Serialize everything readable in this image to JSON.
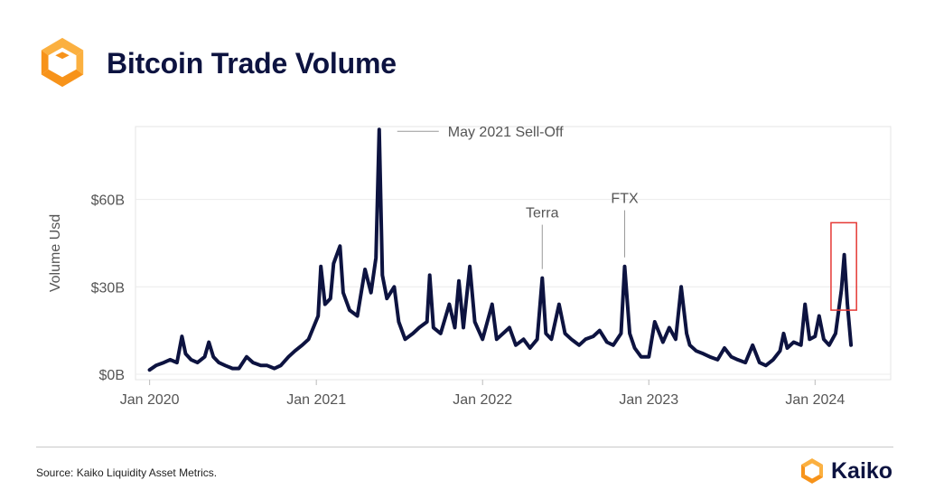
{
  "header": {
    "title": "Bitcoin Trade Volume",
    "logo_icon": "kaiko-logo-icon"
  },
  "footer": {
    "source": "Source: Kaiko Liquidity Asset Metrics.",
    "brand": "Kaiko"
  },
  "colors": {
    "title": "#0d1340",
    "line": "#0d1340",
    "logo_orange": "#f7931a",
    "logo_amber": "#fbb040",
    "highlight_box": "#e53935",
    "axis_text": "#555555",
    "annotation_text": "#555555"
  },
  "chart_data": {
    "type": "line",
    "title": "Bitcoin Trade Volume",
    "xlabel": "",
    "ylabel": "Volume Usd",
    "x_range": [
      "2019-12-01",
      "2024-06-15"
    ],
    "ylim": [
      0,
      85
    ],
    "y_unit": "USD billions",
    "y_ticks": [
      {
        "value": 0,
        "label": "$0B"
      },
      {
        "value": 30,
        "label": "$30B"
      },
      {
        "value": 60,
        "label": "$60B"
      }
    ],
    "x_ticks": [
      {
        "date": "2020-01-01",
        "label": "Jan 2020"
      },
      {
        "date": "2021-01-01",
        "label": "Jan 2021"
      },
      {
        "date": "2022-01-01",
        "label": "Jan 2022"
      },
      {
        "date": "2023-01-01",
        "label": "Jan 2023"
      },
      {
        "date": "2024-01-01",
        "label": "Jan 2024"
      }
    ],
    "grid": true,
    "series": [
      {
        "values": [
          [
            "2020-01-01",
            1.5
          ],
          [
            "2020-01-15",
            3
          ],
          [
            "2020-02-01",
            4
          ],
          [
            "2020-02-15",
            5
          ],
          [
            "2020-03-01",
            4
          ],
          [
            "2020-03-12",
            13
          ],
          [
            "2020-03-20",
            7
          ],
          [
            "2020-04-01",
            5
          ],
          [
            "2020-04-15",
            4
          ],
          [
            "2020-05-01",
            6
          ],
          [
            "2020-05-10",
            11
          ],
          [
            "2020-05-20",
            6
          ],
          [
            "2020-06-01",
            4
          ],
          [
            "2020-06-15",
            3
          ],
          [
            "2020-07-01",
            2
          ],
          [
            "2020-07-15",
            2
          ],
          [
            "2020-08-01",
            6
          ],
          [
            "2020-08-15",
            4
          ],
          [
            "2020-09-01",
            3
          ],
          [
            "2020-09-15",
            3
          ],
          [
            "2020-10-01",
            2
          ],
          [
            "2020-10-15",
            3
          ],
          [
            "2020-11-01",
            6
          ],
          [
            "2020-11-15",
            8
          ],
          [
            "2020-12-01",
            10
          ],
          [
            "2020-12-15",
            12
          ],
          [
            "2021-01-05",
            20
          ],
          [
            "2021-01-11",
            37
          ],
          [
            "2021-01-20",
            24
          ],
          [
            "2021-02-01",
            26
          ],
          [
            "2021-02-08",
            38
          ],
          [
            "2021-02-22",
            44
          ],
          [
            "2021-03-01",
            28
          ],
          [
            "2021-03-15",
            22
          ],
          [
            "2021-04-01",
            20
          ],
          [
            "2021-04-18",
            36
          ],
          [
            "2021-05-01",
            28
          ],
          [
            "2021-05-12",
            40
          ],
          [
            "2021-05-19",
            84
          ],
          [
            "2021-05-26",
            34
          ],
          [
            "2021-06-05",
            26
          ],
          [
            "2021-06-21",
            30
          ],
          [
            "2021-07-01",
            18
          ],
          [
            "2021-07-15",
            12
          ],
          [
            "2021-08-01",
            14
          ],
          [
            "2021-08-15",
            16
          ],
          [
            "2021-09-01",
            18
          ],
          [
            "2021-09-07",
            34
          ],
          [
            "2021-09-15",
            16
          ],
          [
            "2021-10-01",
            14
          ],
          [
            "2021-10-20",
            24
          ],
          [
            "2021-11-01",
            16
          ],
          [
            "2021-11-10",
            32
          ],
          [
            "2021-11-20",
            16
          ],
          [
            "2021-12-04",
            37
          ],
          [
            "2021-12-15",
            18
          ],
          [
            "2022-01-01",
            12
          ],
          [
            "2022-01-22",
            24
          ],
          [
            "2022-02-01",
            12
          ],
          [
            "2022-02-15",
            14
          ],
          [
            "2022-03-01",
            16
          ],
          [
            "2022-03-15",
            10
          ],
          [
            "2022-04-01",
            12
          ],
          [
            "2022-04-15",
            9
          ],
          [
            "2022-05-01",
            12
          ],
          [
            "2022-05-12",
            33
          ],
          [
            "2022-05-20",
            14
          ],
          [
            "2022-06-01",
            12
          ],
          [
            "2022-06-18",
            24
          ],
          [
            "2022-07-01",
            14
          ],
          [
            "2022-07-15",
            12
          ],
          [
            "2022-08-01",
            10
          ],
          [
            "2022-08-15",
            12
          ],
          [
            "2022-09-01",
            13
          ],
          [
            "2022-09-15",
            15
          ],
          [
            "2022-10-01",
            11
          ],
          [
            "2022-10-15",
            10
          ],
          [
            "2022-11-01",
            14
          ],
          [
            "2022-11-09",
            37
          ],
          [
            "2022-11-20",
            14
          ],
          [
            "2022-12-01",
            9
          ],
          [
            "2022-12-15",
            6
          ],
          [
            "2023-01-01",
            6
          ],
          [
            "2023-01-14",
            18
          ],
          [
            "2023-02-01",
            11
          ],
          [
            "2023-02-15",
            16
          ],
          [
            "2023-03-01",
            12
          ],
          [
            "2023-03-13",
            30
          ],
          [
            "2023-03-25",
            14
          ],
          [
            "2023-04-01",
            10
          ],
          [
            "2023-04-15",
            8
          ],
          [
            "2023-05-01",
            7
          ],
          [
            "2023-05-15",
            6
          ],
          [
            "2023-06-01",
            5
          ],
          [
            "2023-06-16",
            9
          ],
          [
            "2023-07-01",
            6
          ],
          [
            "2023-07-15",
            5
          ],
          [
            "2023-08-01",
            4
          ],
          [
            "2023-08-17",
            10
          ],
          [
            "2023-09-01",
            4
          ],
          [
            "2023-09-15",
            3
          ],
          [
            "2023-10-01",
            5
          ],
          [
            "2023-10-16",
            8
          ],
          [
            "2023-10-24",
            14
          ],
          [
            "2023-11-01",
            9
          ],
          [
            "2023-11-15",
            11
          ],
          [
            "2023-12-01",
            10
          ],
          [
            "2023-12-10",
            24
          ],
          [
            "2023-12-20",
            12
          ],
          [
            "2024-01-01",
            13
          ],
          [
            "2024-01-10",
            20
          ],
          [
            "2024-01-20",
            12
          ],
          [
            "2024-02-01",
            10
          ],
          [
            "2024-02-15",
            14
          ],
          [
            "2024-02-28",
            29
          ],
          [
            "2024-03-05",
            41
          ],
          [
            "2024-03-12",
            24
          ],
          [
            "2024-03-20",
            10
          ]
        ]
      }
    ],
    "annotations": [
      {
        "label": "May 2021 Sell-Off",
        "date": "2021-05-19",
        "value": 84
      },
      {
        "label": "Terra",
        "date": "2022-05-12",
        "value": 33
      },
      {
        "label": "FTX",
        "date": "2022-11-09",
        "value": 37
      }
    ],
    "highlight": {
      "from": "2024-02-05",
      "to": "2024-04-01",
      "ymin": 22,
      "ymax": 52
    }
  }
}
